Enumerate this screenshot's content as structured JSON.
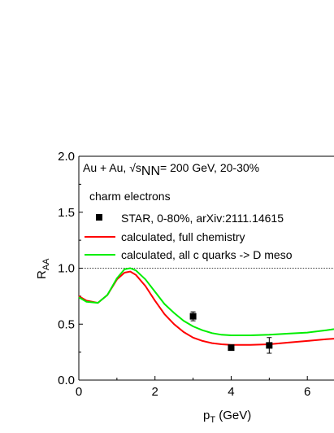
{
  "chart_data": {
    "type": "line",
    "header": {
      "system_prefix": "Au + Au, √s",
      "system_sub": "NN",
      "system_suffix": "= 200 GeV, 20-30%"
    },
    "subtitle": "charm electrons",
    "xlabel_main": "p",
    "xlabel_sub": "T",
    "xlabel_unit": " (GeV)",
    "ylabel_main": "R",
    "ylabel_sub": "AA",
    "xlim": [
      0,
      6.7
    ],
    "ylim": [
      0.0,
      2.0
    ],
    "xticks": [
      0,
      2,
      4,
      6
    ],
    "xtick_labels": [
      "0",
      "2",
      "4",
      "6"
    ],
    "yticks": [
      0.0,
      0.5,
      1.0,
      1.5,
      2.0
    ],
    "ytick_labels": [
      "0.0",
      "0.5",
      "1.0",
      "1.5",
      "2.0"
    ],
    "reference_line_y": 1.0,
    "series": [
      {
        "name": "STAR, 0-80%, arXiv:2111.14615",
        "kind": "points",
        "color": "#000000",
        "points": [
          {
            "x": 3.0,
            "y": 0.57,
            "err": 0.04
          },
          {
            "x": 4.0,
            "y": 0.29,
            "err": 0.0
          },
          {
            "x": 5.0,
            "y": 0.31,
            "err": 0.07
          }
        ]
      },
      {
        "name": "calculated, full chemistry",
        "kind": "line",
        "color": "#ff0000",
        "x": [
          0.0,
          0.2,
          0.5,
          0.75,
          1.0,
          1.2,
          1.35,
          1.5,
          1.75,
          2.0,
          2.25,
          2.5,
          2.75,
          3.0,
          3.25,
          3.5,
          3.75,
          4.0,
          4.25,
          4.5,
          5.0,
          5.5,
          6.0,
          6.5,
          6.7
        ],
        "y": [
          0.75,
          0.71,
          0.69,
          0.76,
          0.9,
          0.96,
          0.97,
          0.94,
          0.84,
          0.71,
          0.59,
          0.5,
          0.43,
          0.38,
          0.35,
          0.33,
          0.32,
          0.315,
          0.315,
          0.315,
          0.32,
          0.335,
          0.35,
          0.365,
          0.37
        ]
      },
      {
        "name": "calculated, all c quarks -> D meso",
        "kind": "line",
        "color": "#00ee00",
        "x": [
          0.0,
          0.2,
          0.5,
          0.75,
          1.0,
          1.2,
          1.35,
          1.5,
          1.75,
          2.0,
          2.25,
          2.5,
          2.75,
          3.0,
          3.25,
          3.5,
          3.75,
          4.0,
          4.25,
          4.5,
          5.0,
          5.5,
          6.0,
          6.5,
          6.7
        ],
        "y": [
          0.74,
          0.7,
          0.69,
          0.76,
          0.91,
          0.99,
          1.0,
          0.98,
          0.9,
          0.79,
          0.68,
          0.6,
          0.53,
          0.48,
          0.445,
          0.42,
          0.405,
          0.4,
          0.4,
          0.4,
          0.405,
          0.415,
          0.425,
          0.445,
          0.455
        ]
      }
    ]
  }
}
